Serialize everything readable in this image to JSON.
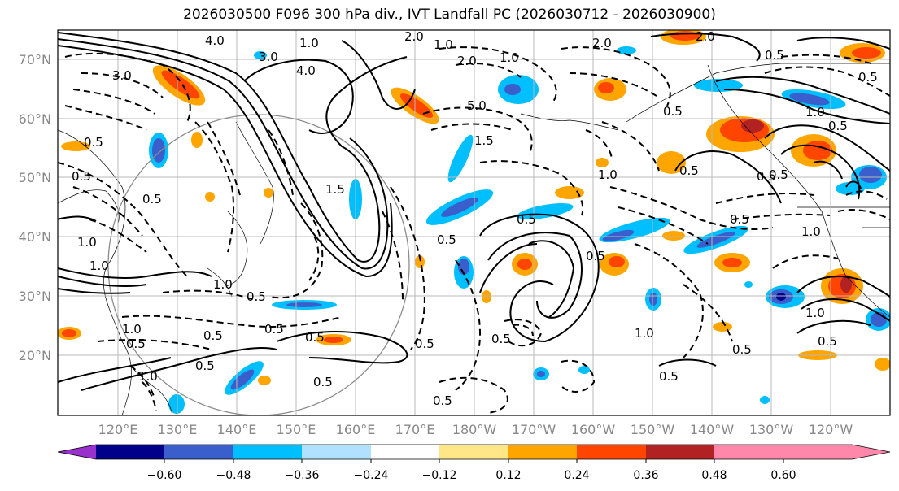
{
  "title": "2026030500 F096 300 hPa div., IVT Landfall PC (2026030712 - 2026030900)",
  "lat_labels": [
    "70°N",
    "60°N",
    "50°N",
    "40°N",
    "30°N",
    "20°N"
  ],
  "lon_labels": [
    "120°E",
    "130°E",
    "140°E",
    "150°E",
    "160°E",
    "170°E",
    "180°W",
    "170°W",
    "160°W",
    "150°W",
    "140°W",
    "130°W",
    "120°W"
  ],
  "colorbar": {
    "colors": [
      "#9932cc",
      "#00008b",
      "#3a5fcd",
      "#00bfff",
      "#b0e2ff",
      "#ffffff",
      "#ffe787",
      "#ffa500",
      "#ff4500",
      "#b22222",
      "#ff88aa"
    ],
    "tick_labels": [
      "−0.60",
      "−0.48",
      "−0.36",
      "−0.24",
      "−0.12",
      "0.12",
      "0.24",
      "0.36",
      "0.48",
      "0.60"
    ]
  },
  "contour_labels": [
    "4.0",
    "3.0",
    "1.0",
    "2.0",
    "1.0",
    "4.0",
    "2.0",
    "1.0",
    "2.0",
    "3.0",
    "5.0",
    "1.5",
    "0.5",
    "1.0",
    "1.5",
    "0.5",
    "1.0",
    "0.5",
    "0.5",
    "1.0",
    "1.0",
    "0.5",
    "0.5",
    "0.5",
    "0.5",
    "1.0",
    "0.5",
    "0.5",
    "0.5",
    "0.5",
    "1.0",
    "0.5",
    "0.5",
    "1.0",
    "0.5",
    "0.5",
    "0.5",
    "0.5",
    "0.5",
    "0.5",
    "1.0",
    "0.5",
    "0.5",
    "2.0",
    "1.0",
    "0.5",
    "0.5",
    "0.5",
    "1.0",
    "0.5",
    "0.5"
  ]
}
